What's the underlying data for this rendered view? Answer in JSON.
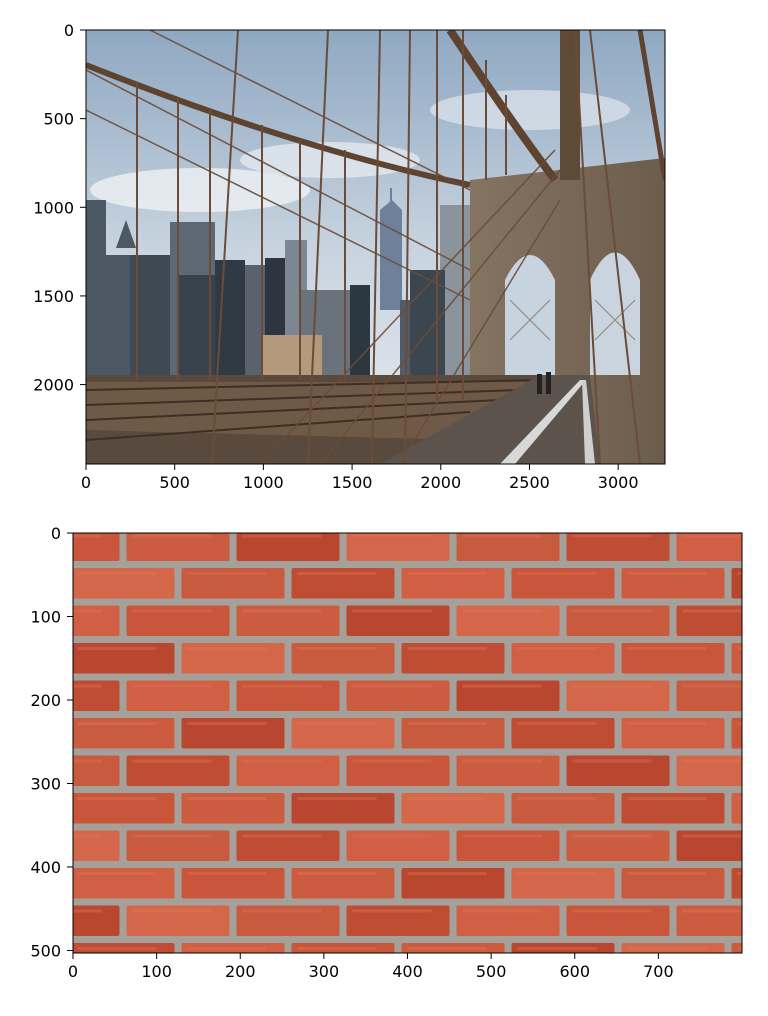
{
  "chart_data": [
    {
      "type": "image",
      "image": "photo-brooklyn-bridge",
      "xlim": [
        0,
        3264
      ],
      "ylim": [
        2448,
        0
      ],
      "xticks": [
        0,
        500,
        1000,
        1500,
        2000,
        2500,
        3000
      ],
      "yticks": [
        0,
        500,
        1000,
        1500,
        2000
      ],
      "tick_labels_x": [
        "0",
        "500",
        "1000",
        "1500",
        "2000",
        "2500",
        "3000"
      ],
      "tick_labels_y": [
        "0",
        "500",
        "1000",
        "1500",
        "2000"
      ],
      "grid": false
    },
    {
      "type": "image",
      "image": "photo-red-brick-wall",
      "xlim": [
        0,
        800
      ],
      "ylim": [
        503,
        0
      ],
      "xticks": [
        0,
        100,
        200,
        300,
        400,
        500,
        600,
        700
      ],
      "yticks": [
        0,
        100,
        200,
        300,
        400,
        500
      ],
      "tick_labels_x": [
        "0",
        "100",
        "200",
        "300",
        "400",
        "500",
        "600",
        "700"
      ],
      "tick_labels_y": [
        "0",
        "100",
        "200",
        "300",
        "400",
        "500"
      ],
      "grid": false
    }
  ],
  "colors": {
    "sky": "#a9bed3",
    "sky_light": "#dde5ec",
    "stone": "#7b6a58",
    "cable": "#6b4a35",
    "city": "#4f5a66",
    "deck": "#5f5349",
    "brick": "#c8563b",
    "mortar": "#a6a09a"
  }
}
